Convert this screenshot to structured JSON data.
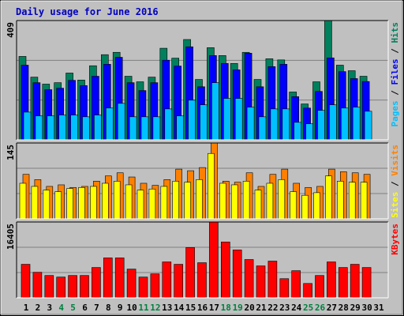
{
  "chart_data": [
    {
      "type": "bar",
      "title": "Daily usage for June 2016",
      "ylim": [
        0,
        409
      ],
      "yticks": [
        409
      ],
      "grid": true,
      "series": [
        {
          "name": "Hits",
          "color": "#00805c",
          "values": [
            286,
            215,
            191,
            196,
            229,
            205,
            254,
            292,
            300,
            218,
            199,
            215,
            314,
            280,
            344,
            207,
            316,
            289,
            262,
            300,
            207,
            278,
            274,
            164,
            123,
            199,
            409,
            256,
            237,
            218,
            null
          ]
        },
        {
          "name": "Files",
          "color": "#0000ff",
          "values": [
            256,
            196,
            172,
            177,
            204,
            186,
            218,
            259,
            283,
            196,
            169,
            196,
            273,
            253,
            319,
            182,
            289,
            262,
            240,
            297,
            182,
            251,
            259,
            148,
            109,
            166,
            281,
            234,
            210,
            200,
            null
          ]
        },
        {
          "name": "Pages",
          "color": "#00c0ff",
          "values": [
            95,
            82,
            82,
            85,
            85,
            79,
            85,
            109,
            125,
            79,
            79,
            79,
            106,
            82,
            136,
            120,
            196,
            142,
            142,
            112,
            79,
            106,
            106,
            60,
            55,
            101,
            120,
            109,
            112,
            98,
            null
          ]
        }
      ]
    },
    {
      "type": "bar",
      "ylim": [
        0,
        145
      ],
      "yticks": [
        145
      ],
      "grid": true,
      "series": [
        {
          "name": "Visits",
          "color": "#ff8000",
          "values": [
            85,
            75,
            62,
            65,
            60,
            62,
            72,
            82,
            88,
            80,
            68,
            64,
            75,
            95,
            92,
            98,
            145,
            72,
            70,
            88,
            62,
            85,
            95,
            68,
            60,
            62,
            95,
            90,
            88,
            85,
            null
          ]
        },
        {
          "name": "Sites",
          "color": "#ffff00",
          "values": [
            68,
            62,
            55,
            52,
            58,
            60,
            62,
            68,
            72,
            65,
            55,
            57,
            62,
            72,
            70,
            75,
            125,
            68,
            65,
            72,
            55,
            68,
            75,
            52,
            45,
            50,
            82,
            72,
            70,
            70,
            null
          ]
        }
      ]
    },
    {
      "type": "bar",
      "ylim": [
        0,
        16405
      ],
      "yticks": [
        16405
      ],
      "grid": true,
      "categories": [
        1,
        2,
        3,
        4,
        5,
        6,
        7,
        8,
        9,
        10,
        11,
        12,
        13,
        14,
        15,
        16,
        17,
        18,
        19,
        20,
        21,
        22,
        23,
        24,
        25,
        26,
        27,
        28,
        29,
        30,
        31
      ],
      "category_colors": [
        "#000000",
        "#000000",
        "#000000",
        "#008040",
        "#008040",
        "#000000",
        "#000000",
        "#000000",
        "#000000",
        "#000000",
        "#008040",
        "#008040",
        "#000000",
        "#000000",
        "#000000",
        "#000000",
        "#000000",
        "#008040",
        "#008040",
        "#000000",
        "#000000",
        "#000000",
        "#000000",
        "#000000",
        "#008040",
        "#008040",
        "#000000",
        "#000000",
        "#000000",
        "#000000",
        "#000000"
      ],
      "series": [
        {
          "name": "KBytes",
          "color": "#ff0000",
          "values": [
            7253,
            5526,
            4835,
            4490,
            4835,
            4835,
            6562,
            8635,
            8635,
            6217,
            4490,
            5181,
            7771,
            7253,
            10879,
            7598,
            16405,
            12088,
            10361,
            8289,
            6907,
            7944,
            4144,
            5871,
            3108,
            4835,
            7771,
            6562,
            7253,
            6562,
            null
          ]
        }
      ]
    }
  ]
}
